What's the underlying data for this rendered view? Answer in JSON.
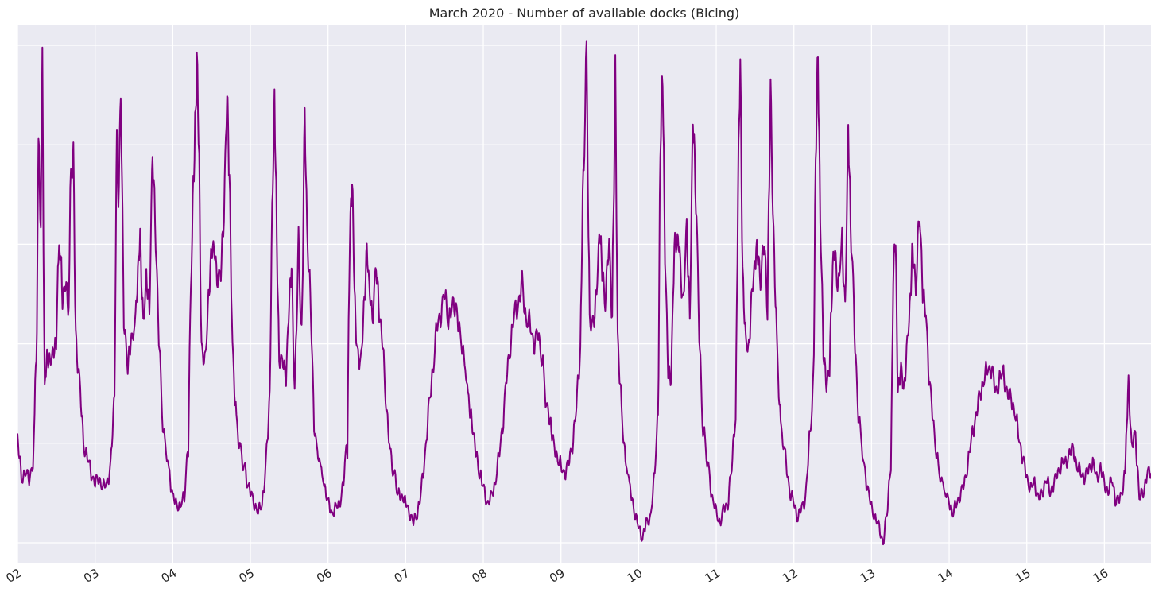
{
  "chart_data": {
    "type": "line",
    "title": "March 2020 - Number of available docks (Bicing)",
    "xlabel": "",
    "ylabel": "",
    "x_unit": "day of March 2020",
    "xlim": [
      2.0,
      16.6
    ],
    "ylim": [
      -0.4,
      10.4
    ],
    "y_gridlines": [
      0,
      2,
      4,
      6,
      8,
      10
    ],
    "y_tick_labels_visible": false,
    "x_tick_values": [
      2,
      3,
      4,
      5,
      6,
      7,
      8,
      9,
      10,
      11,
      12,
      13,
      14,
      15,
      16
    ],
    "x_tick_labels": [
      "02",
      "03",
      "04",
      "05",
      "06",
      "07",
      "08",
      "09",
      "10",
      "11",
      "12",
      "13",
      "14",
      "15",
      "16"
    ],
    "grid": true,
    "background_color": "#eaeaf2",
    "grid_color": "#ffffff",
    "line_color": "#800080",
    "series": [
      {
        "x": [
          2.0,
          2.05,
          2.1,
          2.15,
          2.2,
          2.22,
          2.25,
          2.27,
          2.3,
          2.32,
          2.35,
          2.38,
          2.42,
          2.46,
          2.5,
          2.52,
          2.55,
          2.58,
          2.62,
          2.66,
          2.68,
          2.72,
          2.75,
          2.8,
          2.85,
          2.9,
          2.95,
          3.0,
          3.05,
          3.1,
          3.15,
          3.2,
          3.25,
          3.28,
          3.3,
          3.33,
          3.37,
          3.42,
          3.46,
          3.5,
          3.52,
          3.55,
          3.58,
          3.62,
          3.66,
          3.7,
          3.74,
          3.78,
          3.82,
          3.88,
          3.95,
          4.0,
          4.05,
          4.1,
          4.15,
          4.2,
          4.25,
          4.28,
          4.31,
          4.34,
          4.37,
          4.42,
          4.46,
          4.5,
          4.53,
          4.57,
          4.62,
          4.66,
          4.7,
          4.73,
          4.77,
          4.82,
          4.88,
          4.95,
          5.0,
          5.05,
          5.1,
          5.15,
          5.2,
          5.25,
          5.28,
          5.31,
          5.34,
          5.37,
          5.42,
          5.46,
          5.5,
          5.53,
          5.57,
          5.62,
          5.66,
          5.7,
          5.73,
          5.78,
          5.82,
          5.88,
          5.95,
          6.0,
          6.05,
          6.1,
          6.15,
          6.2,
          6.25,
          6.28,
          6.31,
          6.34,
          6.37,
          6.42,
          6.46,
          6.5,
          6.53,
          6.57,
          6.62,
          6.66,
          6.7,
          6.75,
          6.8,
          6.86,
          6.92,
          7.0,
          7.05,
          7.1,
          7.15,
          7.2,
          7.25,
          7.3,
          7.35,
          7.4,
          7.45,
          7.5,
          7.55,
          7.6,
          7.65,
          7.7,
          7.75,
          7.82,
          7.9,
          8.0,
          8.05,
          8.1,
          8.15,
          8.2,
          8.25,
          8.3,
          8.35,
          8.4,
          8.45,
          8.5,
          8.55,
          8.6,
          8.65,
          8.7,
          8.75,
          8.82,
          8.9,
          9.0,
          9.05,
          9.1,
          9.15,
          9.2,
          9.25,
          9.28,
          9.31,
          9.33,
          9.37,
          9.42,
          9.46,
          9.5,
          9.53,
          9.57,
          9.62,
          9.66,
          9.7,
          9.73,
          9.78,
          9.83,
          9.9,
          9.95,
          10.0,
          10.05,
          10.1,
          10.15,
          10.2,
          10.25,
          10.28,
          10.31,
          10.34,
          10.38,
          10.42,
          10.46,
          10.5,
          10.53,
          10.57,
          10.62,
          10.66,
          10.7,
          10.73,
          10.78,
          10.83,
          10.9,
          10.95,
          11.0,
          11.05,
          11.1,
          11.15,
          11.2,
          11.25,
          11.28,
          11.31,
          11.34,
          11.38,
          11.42,
          11.46,
          11.5,
          11.53,
          11.57,
          11.62,
          11.66,
          11.7,
          11.73,
          11.78,
          11.83,
          11.9,
          11.95,
          12.0,
          12.05,
          12.1,
          12.15,
          12.2,
          12.25,
          12.28,
          12.31,
          12.34,
          12.38,
          12.42,
          12.46,
          12.5,
          12.53,
          12.57,
          12.62,
          12.66,
          12.7,
          12.73,
          12.78,
          12.83,
          12.9,
          12.95,
          13.0,
          13.05,
          13.1,
          13.15,
          13.2,
          13.25,
          13.28,
          13.31,
          13.34,
          13.38,
          13.42,
          13.46,
          13.5,
          13.53,
          13.57,
          13.62,
          13.66,
          13.7,
          13.75,
          13.8,
          13.86,
          13.93,
          14.0,
          14.05,
          14.1,
          14.15,
          14.2,
          14.25,
          14.3,
          14.35,
          14.4,
          14.45,
          14.5,
          14.55,
          14.6,
          14.65,
          14.7,
          14.75,
          14.8,
          14.85,
          14.9,
          14.95,
          15.0,
          15.05,
          15.1,
          15.15,
          15.2,
          15.25,
          15.3,
          15.35,
          15.4,
          15.45,
          15.5,
          15.55,
          15.6,
          15.65,
          15.7,
          15.75,
          15.8,
          15.85,
          15.9,
          15.95,
          16.0,
          16.05,
          16.1,
          16.15,
          16.2,
          16.25,
          16.28,
          16.31,
          16.35,
          16.4,
          16.45,
          16.5,
          16.55,
          16.6
        ],
        "y": [
          2.1,
          1.3,
          1.4,
          1.3,
          1.6,
          2.7,
          4.4,
          8.2,
          6.1,
          9.6,
          3.1,
          3.7,
          3.6,
          3.8,
          4.0,
          5.7,
          6.0,
          4.8,
          5.2,
          4.6,
          7.0,
          7.8,
          4.2,
          3.2,
          2.0,
          1.7,
          1.4,
          1.2,
          1.3,
          1.1,
          1.2,
          1.5,
          3.0,
          8.2,
          6.8,
          9.3,
          4.6,
          3.5,
          4.0,
          4.2,
          4.5,
          5.5,
          6.0,
          4.3,
          5.3,
          4.6,
          7.8,
          6.0,
          4.1,
          2.2,
          1.5,
          0.9,
          0.8,
          0.7,
          1.0,
          2.0,
          6.5,
          7.7,
          9.9,
          7.5,
          4.0,
          3.6,
          4.8,
          5.8,
          6.1,
          5.4,
          5.4,
          6.5,
          9.0,
          7.5,
          4.0,
          2.4,
          1.8,
          1.3,
          1.0,
          0.8,
          0.6,
          0.8,
          1.5,
          3.0,
          6.5,
          9.1,
          6.0,
          3.8,
          3.6,
          3.2,
          4.8,
          5.7,
          3.1,
          6.0,
          3.8,
          8.5,
          6.5,
          4.5,
          2.3,
          1.7,
          1.2,
          0.8,
          0.6,
          0.7,
          0.8,
          1.2,
          2.2,
          6.0,
          7.5,
          5.0,
          4.0,
          3.5,
          4.5,
          5.8,
          5.3,
          4.6,
          5.5,
          4.5,
          4.0,
          2.8,
          1.8,
          1.3,
          0.9,
          0.8,
          0.6,
          0.4,
          0.6,
          1.0,
          1.8,
          2.7,
          3.5,
          4.3,
          4.6,
          5.0,
          4.5,
          4.7,
          4.8,
          4.1,
          3.8,
          2.7,
          1.8,
          1.1,
          0.8,
          0.9,
          1.2,
          1.7,
          2.4,
          3.3,
          4.0,
          4.6,
          4.8,
          5.2,
          4.5,
          4.4,
          4.0,
          4.2,
          3.8,
          2.7,
          2.0,
          1.5,
          1.4,
          1.6,
          2.0,
          2.7,
          4.0,
          6.8,
          8.4,
          10.0,
          4.5,
          4.3,
          5.0,
          6.2,
          5.6,
          4.9,
          6.0,
          4.3,
          9.3,
          4.2,
          2.6,
          1.7,
          1.0,
          0.6,
          0.3,
          0.1,
          0.4,
          0.5,
          1.2,
          2.7,
          7.8,
          9.7,
          5.7,
          3.4,
          3.2,
          5.9,
          6.0,
          5.9,
          4.8,
          6.2,
          4.4,
          8.4,
          7.5,
          4.2,
          2.3,
          1.5,
          0.9,
          0.6,
          0.4,
          0.7,
          0.8,
          1.5,
          2.7,
          6.9,
          9.8,
          5.3,
          4.0,
          3.8,
          5.0,
          5.5,
          6.0,
          5.3,
          6.0,
          4.6,
          9.1,
          6.6,
          4.0,
          2.4,
          1.6,
          1.0,
          0.8,
          0.5,
          0.7,
          0.9,
          2.0,
          3.2,
          7.5,
          10.0,
          6.5,
          3.8,
          3.1,
          3.5,
          5.5,
          5.9,
          5.1,
          6.0,
          4.6,
          8.2,
          6.5,
          4.3,
          2.6,
          1.6,
          1.1,
          0.7,
          0.5,
          0.3,
          0.0,
          0.6,
          1.7,
          5.3,
          6.2,
          3.0,
          3.5,
          3.0,
          4.0,
          4.8,
          6.0,
          5.1,
          6.6,
          5.0,
          4.6,
          3.2,
          2.3,
          1.5,
          1.1,
          0.8,
          0.6,
          0.8,
          1.0,
          1.2,
          1.7,
          2.2,
          2.6,
          3.0,
          3.3,
          3.5,
          3.5,
          3.0,
          3.3,
          3.4,
          3.0,
          2.9,
          2.6,
          2.1,
          1.7,
          1.3,
          1.1,
          1.2,
          0.9,
          1.0,
          1.3,
          1.0,
          1.2,
          1.4,
          1.6,
          1.6,
          1.8,
          1.9,
          1.5,
          1.4,
          1.3,
          1.5,
          1.6,
          1.3,
          1.5,
          1.2,
          1.0,
          1.3,
          0.8,
          0.9,
          1.2,
          2.0,
          3.2,
          1.9,
          2.2,
          0.9,
          1.0,
          1.4,
          1.4
        ]
      }
    ]
  }
}
